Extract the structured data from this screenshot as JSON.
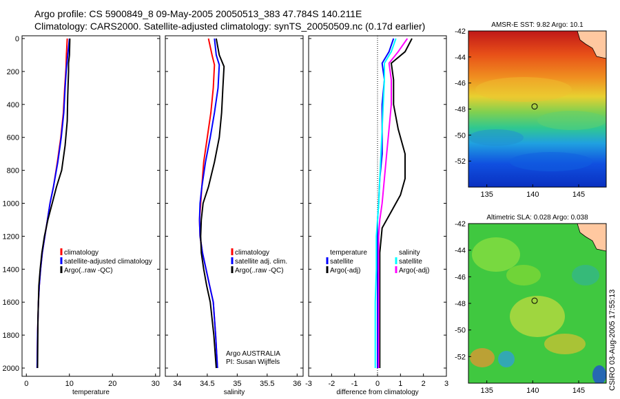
{
  "header": {
    "line1": "Argo profile: CS 5900849_8 09-May-2005 20050513_383 47.784S 140.211E",
    "line2": "Climatology: CARS2000. Satellite-adjusted climatology: synTS_20050509.nc (0.17d earlier)"
  },
  "side_label": "CSIRO 03-Aug-2005 17:55:13",
  "chart_data": [
    {
      "type": "line",
      "xlabel": "temperature",
      "xlim": [
        -1,
        31
      ],
      "xticks": [
        0,
        10,
        20,
        30
      ],
      "ylim": [
        2050,
        0
      ],
      "yticks": [
        0,
        200,
        400,
        600,
        800,
        1000,
        1200,
        1400,
        1600,
        1800,
        2000
      ],
      "legend": [
        "climatology",
        "satellite-adjusted climatology",
        "Argo(..raw -QC)"
      ],
      "series": [
        {
          "name": "climatology",
          "color": "#ff0000",
          "x": [
            9.5,
            9.3,
            9.2,
            8.9,
            8.6,
            8.0,
            7.2,
            6.3,
            5.5,
            4.9,
            4.3,
            3.7,
            3.3,
            3.0,
            2.8,
            2.6,
            2.5
          ],
          "y": [
            0,
            100,
            180,
            300,
            450,
            600,
            750,
            900,
            1000,
            1100,
            1200,
            1300,
            1400,
            1500,
            1600,
            1800,
            2000
          ]
        },
        {
          "name": "satellite-adjusted climatology",
          "color": "#0000ff",
          "x": [
            10.0,
            9.6,
            9.3,
            9.0,
            8.7,
            8.1,
            7.3,
            6.3,
            5.5,
            4.9,
            4.3,
            3.7,
            3.3,
            3.0,
            2.8,
            2.6,
            2.5
          ],
          "y": [
            0,
            100,
            180,
            300,
            450,
            600,
            750,
            900,
            1000,
            1100,
            1200,
            1300,
            1400,
            1500,
            1600,
            1800,
            2000
          ]
        },
        {
          "name": "Argo(..raw -QC)",
          "color": "#000000",
          "x": [
            10.1,
            10.0,
            9.8,
            9.8,
            9.6,
            9.5,
            9.0,
            8.2,
            7.0,
            6.0,
            5.0,
            4.2,
            3.6,
            3.2,
            2.9,
            2.7,
            2.6
          ],
          "y": [
            0,
            100,
            150,
            200,
            350,
            500,
            650,
            800,
            900,
            1000,
            1100,
            1200,
            1300,
            1400,
            1500,
            1700,
            2000
          ]
        }
      ]
    },
    {
      "type": "line",
      "xlabel": "salinity",
      "xlim": [
        33.8,
        36.1
      ],
      "xticks": [
        34,
        34.5,
        35,
        35.5,
        36
      ],
      "ylim": [
        2050,
        0
      ],
      "legend": [
        "climatology",
        "satellite adj. clim.",
        "Argo(..raw -QC)"
      ],
      "annotation": [
        "Argo AUSTRALIA",
        "PI: Susan Wijffels"
      ],
      "series": [
        {
          "name": "climatology",
          "color": "#ff0000",
          "x": [
            34.52,
            34.58,
            34.62,
            34.6,
            34.56,
            34.5,
            34.44,
            34.41,
            34.39,
            34.37,
            34.38,
            34.42,
            34.48,
            34.54,
            34.6,
            34.64,
            34.67
          ],
          "y": [
            0,
            100,
            160,
            300,
            450,
            600,
            750,
            900,
            1000,
            1100,
            1200,
            1300,
            1400,
            1500,
            1600,
            1800,
            2000
          ]
        },
        {
          "name": "satellite adj. clim.",
          "color": "#0000ff",
          "x": [
            34.62,
            34.65,
            34.7,
            34.68,
            34.62,
            34.55,
            34.47,
            34.41,
            34.38,
            34.37,
            34.38,
            34.42,
            34.48,
            34.54,
            34.6,
            34.64,
            34.67
          ],
          "y": [
            0,
            100,
            160,
            300,
            450,
            600,
            750,
            900,
            1000,
            1100,
            1200,
            1300,
            1400,
            1500,
            1600,
            1800,
            2000
          ]
        },
        {
          "name": "Argo(..raw -QC)",
          "color": "#000000",
          "x": [
            34.65,
            34.7,
            34.78,
            34.76,
            34.74,
            34.7,
            34.62,
            34.52,
            34.43,
            34.4,
            34.39,
            34.4,
            34.44,
            34.49,
            34.55,
            34.61,
            34.65
          ],
          "y": [
            0,
            100,
            170,
            300,
            450,
            600,
            750,
            900,
            1000,
            1100,
            1200,
            1300,
            1400,
            1500,
            1600,
            1800,
            2000
          ]
        }
      ]
    },
    {
      "type": "line",
      "xlabel": "difference from climatology",
      "xlim": [
        -3,
        3
      ],
      "xticks": [
        -3,
        -2,
        -1,
        0,
        1,
        2,
        3
      ],
      "ylim": [
        2050,
        0
      ],
      "legend_left": [
        "temperature",
        "satellite",
        "Argo(-adj)"
      ],
      "legend_right": [
        "salinity",
        "satellite",
        "Argo(-adj)"
      ],
      "series": [
        {
          "name": "satellite",
          "color": "#0000ff",
          "x": [
            0.7,
            0.5,
            0.2,
            0.3,
            0.2,
            0.2,
            0.2,
            0.1,
            0.05,
            0.0,
            0.0,
            0.0,
            0.0,
            0.0,
            0.0,
            0.0
          ],
          "y": [
            0,
            80,
            150,
            250,
            400,
            550,
            700,
            850,
            1000,
            1100,
            1200,
            1400,
            1600,
            1800,
            1900,
            2000
          ]
        },
        {
          "name": "Argo(-adj)",
          "color": "#000000",
          "x": [
            1.5,
            1.2,
            0.6,
            0.7,
            0.7,
            0.9,
            1.2,
            1.2,
            1.0,
            0.6,
            0.2,
            0.1,
            0.1,
            0.1,
            0.1,
            0.1
          ],
          "y": [
            0,
            80,
            150,
            250,
            400,
            550,
            700,
            850,
            950,
            1050,
            1150,
            1300,
            1500,
            1700,
            1850,
            2000
          ]
        },
        {
          "name": "satellite",
          "color": "#00ffff",
          "x": [
            0.8,
            0.6,
            0.3,
            0.3,
            0.25,
            0.2,
            0.15,
            0.1,
            0.05,
            0.0,
            -0.05,
            -0.05,
            -0.1,
            -0.1,
            -0.1,
            -0.1
          ],
          "y": [
            0,
            80,
            150,
            250,
            400,
            550,
            700,
            850,
            1000,
            1100,
            1200,
            1400,
            1600,
            1800,
            1900,
            2000
          ]
        },
        {
          "name": "Argo(-adj)",
          "color": "#ff00ff",
          "x": [
            1.3,
            0.9,
            0.5,
            0.6,
            0.6,
            0.5,
            0.4,
            0.3,
            0.2,
            0.1,
            0.05,
            0.05,
            0.05,
            0.05,
            0.05,
            0.05
          ],
          "y": [
            0,
            80,
            150,
            250,
            400,
            550,
            700,
            850,
            1000,
            1100,
            1200,
            1400,
            1600,
            1800,
            1900,
            2000
          ]
        }
      ]
    },
    {
      "type": "heatmap",
      "title": "AMSR-E SST: 9.82 Argo: 10.1",
      "xlim": [
        133,
        148
      ],
      "ylim": [
        -54,
        -42
      ],
      "xticks": [
        135,
        140,
        145
      ],
      "yticks": [
        -42,
        -44,
        -46,
        -48,
        -50,
        -52
      ],
      "marker": {
        "lon": 140.2,
        "lat": -47.8
      }
    },
    {
      "type": "heatmap",
      "title": "Altimetric SLA: 0.028 Argo: 0.038",
      "xlim": [
        133,
        148
      ],
      "ylim": [
        -54,
        -42
      ],
      "xticks": [
        135,
        140,
        145
      ],
      "yticks": [
        -42,
        -44,
        -46,
        -48,
        -50,
        -52
      ],
      "marker": {
        "lon": 140.2,
        "lat": -47.8
      }
    }
  ]
}
